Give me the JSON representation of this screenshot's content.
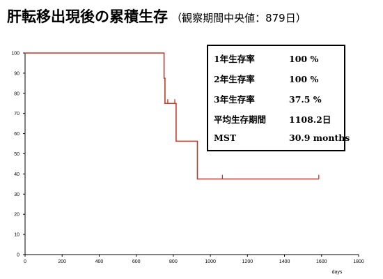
{
  "title": {
    "main": "肝転移出現後の累積生存",
    "sub": "（観察期間中央値：879日）"
  },
  "stats": [
    {
      "label": "1年生存率",
      "value": "100 %"
    },
    {
      "label": "2年生存率",
      "value": "100 %"
    },
    {
      "label": "3年生存率",
      "value": "37.5 %"
    },
    {
      "label": "平均生存期間",
      "value": "1108.2日"
    },
    {
      "label": "MST",
      "value": "30.9  months"
    }
  ],
  "chart_data": {
    "type": "line",
    "step": true,
    "xlabel": "days",
    "ylabel": "",
    "xlim": [
      0,
      1800
    ],
    "ylim": [
      0,
      100
    ],
    "x_ticks": [
      0,
      200,
      400,
      600,
      800,
      1000,
      1200,
      1400,
      1600,
      1800
    ],
    "y_ticks": [
      0,
      10,
      20,
      30,
      40,
      50,
      60,
      70,
      80,
      90,
      100
    ],
    "grid": false,
    "color": "#c0392b",
    "series": [
      {
        "points": [
          [
            0,
            100
          ],
          [
            750,
            100
          ],
          [
            750,
            87.5
          ],
          [
            755,
            87.5
          ],
          [
            755,
            75
          ],
          [
            815,
            75
          ],
          [
            815,
            56.25
          ],
          [
            930,
            56.25
          ],
          [
            930,
            37.5
          ],
          [
            1585,
            37.5
          ]
        ]
      }
    ],
    "censored": [
      [
        770,
        75
      ],
      [
        808,
        75
      ],
      [
        1065,
        37.5
      ],
      [
        1585,
        37.5
      ]
    ]
  }
}
